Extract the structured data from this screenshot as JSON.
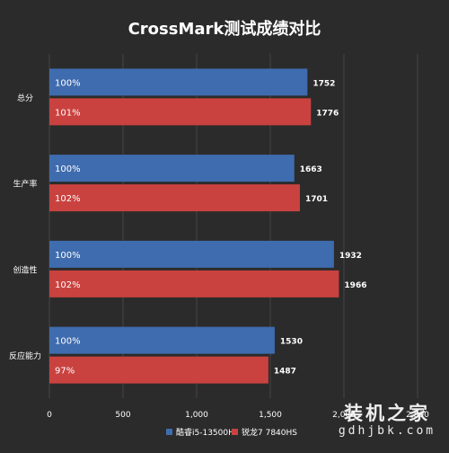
{
  "chart_data": {
    "type": "bar",
    "orientation": "horizontal",
    "title": "CrossMark测试成绩对比",
    "categories": [
      "总分",
      "生产率",
      "创造性",
      "反应能力"
    ],
    "series": [
      {
        "name": "酷睿i5-13500H",
        "color": "#3f6cae",
        "values": [
          1752,
          1663,
          1932,
          1530
        ],
        "percent_labels": [
          "100%",
          "100%",
          "100%",
          "100%"
        ]
      },
      {
        "name": "锐龙7 7840HS",
        "color": "#c9423f",
        "values": [
          1776,
          1701,
          1966,
          1487
        ],
        "percent_labels": [
          "101%",
          "102%",
          "102%",
          "97%"
        ]
      }
    ],
    "xlim": [
      0,
      2500
    ],
    "x_ticks": [
      "0",
      "500",
      "1,000",
      "1,500",
      "2,000",
      "2,500"
    ],
    "xlabel": "",
    "ylabel": "",
    "grid": true,
    "legend_position": "bottom"
  },
  "watermark": {
    "title": "装机之家",
    "url": "gdhjbk.com"
  }
}
